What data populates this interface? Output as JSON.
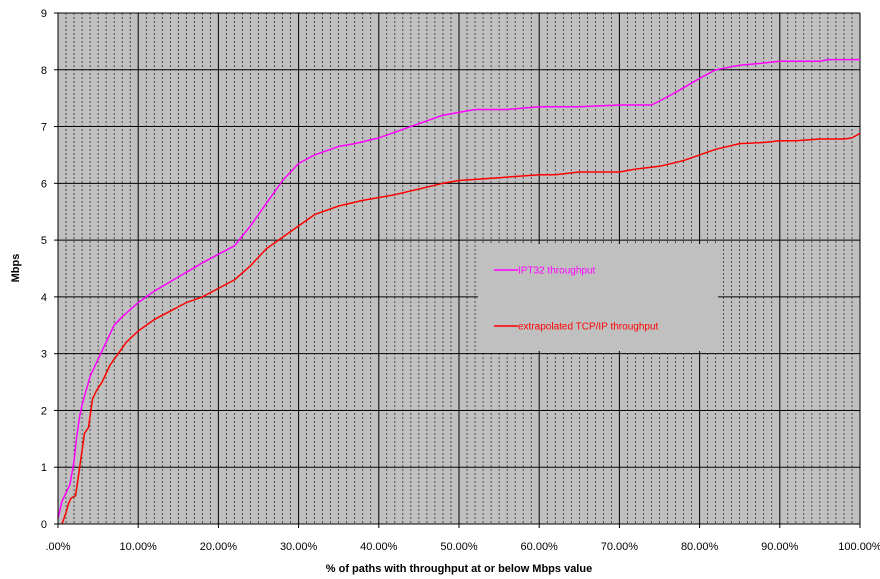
{
  "chart_data": {
    "type": "line",
    "title": "",
    "xlabel": "% of paths with throughput at or below Mbps value",
    "ylabel": "Mbps",
    "xlim": [
      0,
      100
    ],
    "ylim": [
      0,
      9
    ],
    "x_tick_labels": [
      ".00%",
      "10.00%",
      "20.00%",
      "30.00%",
      "40.00%",
      "50.00%",
      "60.00%",
      "70.00%",
      "80.00%",
      "90.00%",
      "100.00%"
    ],
    "y_tick_labels": [
      "0",
      "1",
      "2",
      "3",
      "4",
      "5",
      "6",
      "7",
      "8",
      "9"
    ],
    "grid": true,
    "plot_background": "#c0c0c0",
    "legend": {
      "placement": "center-right",
      "background": "#c0c0c0",
      "entries": [
        "IPT32 throughput",
        "extrapolated TCP/IP throughput"
      ]
    },
    "series": [
      {
        "name": "IPT32 throughput",
        "color": "#ff00ff",
        "x": [
          0,
          0.5,
          1.5,
          2.0,
          2.3,
          2.7,
          3.0,
          3.5,
          4.0,
          5.0,
          6.0,
          7.0,
          8.0,
          10.0,
          12.0,
          15.0,
          18.0,
          20.0,
          22.0,
          24.0,
          26.0,
          28.0,
          30.0,
          32.0,
          35.0,
          37.0,
          40.0,
          45.0,
          48.0,
          52.0,
          56.0,
          60.0,
          65.0,
          70.0,
          74.0,
          75.0,
          77.0,
          80.0,
          82.0,
          85.0,
          88.0,
          90.0,
          92.0,
          95.0,
          96.0,
          100.0
        ],
        "values": [
          0.1,
          0.4,
          0.7,
          1.1,
          1.5,
          1.9,
          2.1,
          2.35,
          2.6,
          2.9,
          3.2,
          3.5,
          3.65,
          3.9,
          4.1,
          4.35,
          4.6,
          4.75,
          4.9,
          5.25,
          5.65,
          6.05,
          6.35,
          6.5,
          6.65,
          6.7,
          6.8,
          7.05,
          7.2,
          7.3,
          7.3,
          7.35,
          7.35,
          7.38,
          7.38,
          7.45,
          7.6,
          7.85,
          8.0,
          8.08,
          8.12,
          8.15,
          8.15,
          8.15,
          8.18,
          8.18
        ]
      },
      {
        "name": "extrapolated TCP/IP throughput",
        "color": "#ff0000",
        "x": [
          0.5,
          1.0,
          1.3,
          1.6,
          2.2,
          2.6,
          2.9,
          3.3,
          3.8,
          4.3,
          4.8,
          5.5,
          6.5,
          7.5,
          8.5,
          10.0,
          12.0,
          14.0,
          16.0,
          18.0,
          20.0,
          22.0,
          24.0,
          26.0,
          28.0,
          30.0,
          32.0,
          35.0,
          38.0,
          42.0,
          45.0,
          48.0,
          50.0,
          55.0,
          60.0,
          62.0,
          65.0,
          70.0,
          72.0,
          75.0,
          78.0,
          80.0,
          82.0,
          85.0,
          88.0,
          90.0,
          92.0,
          95.0,
          98.0,
          99.0,
          100.0
        ],
        "values": [
          0.0,
          0.2,
          0.35,
          0.45,
          0.5,
          0.9,
          1.2,
          1.6,
          1.7,
          2.2,
          2.35,
          2.5,
          2.8,
          3.0,
          3.2,
          3.4,
          3.6,
          3.75,
          3.9,
          4.0,
          4.15,
          4.3,
          4.55,
          4.85,
          5.05,
          5.25,
          5.45,
          5.6,
          5.7,
          5.8,
          5.9,
          6.0,
          6.05,
          6.1,
          6.15,
          6.15,
          6.2,
          6.2,
          6.25,
          6.3,
          6.4,
          6.5,
          6.6,
          6.7,
          6.72,
          6.75,
          6.75,
          6.78,
          6.78,
          6.8,
          6.88
        ]
      }
    ]
  }
}
